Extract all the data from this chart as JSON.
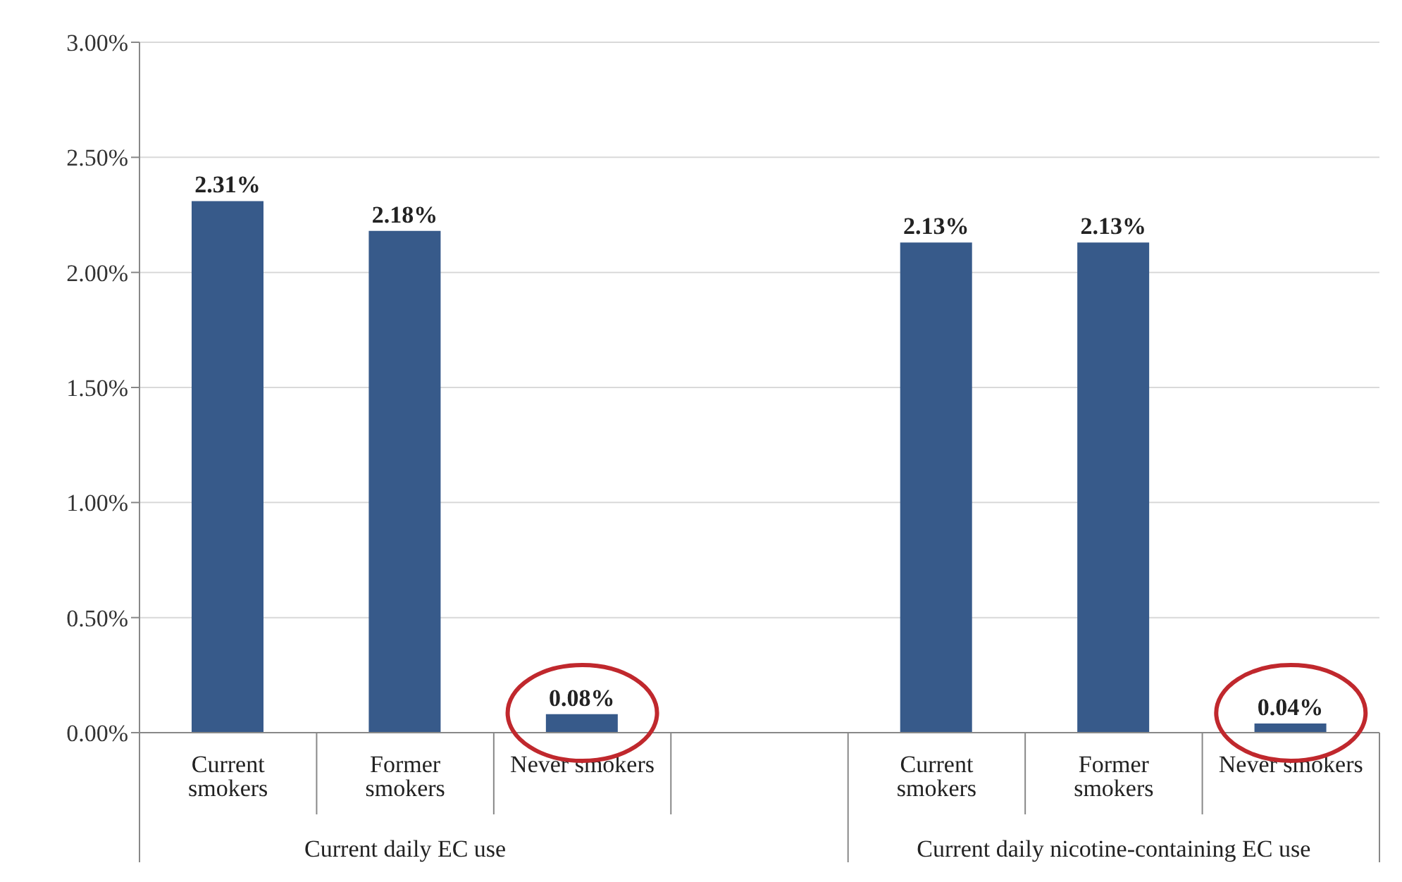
{
  "chart_data": {
    "type": "bar",
    "categories": [
      "Current smokers",
      "Former smokers",
      "Never smokers",
      null,
      "Current smokers",
      "Former smokers",
      "Never smokers"
    ],
    "values": [
      2.31,
      2.18,
      0.08,
      null,
      2.13,
      2.13,
      0.04
    ],
    "value_labels": [
      "2.31%",
      "2.18%",
      "0.08%",
      null,
      "2.13%",
      "2.13%",
      "0.04%"
    ],
    "color": "#375a8a",
    "ylim": [
      0,
      3
    ],
    "yticks": [
      {
        "value": 0,
        "label": "0.00%"
      },
      {
        "value": 0.5,
        "label": "0.50%"
      },
      {
        "value": 1,
        "label": "1.00%"
      },
      {
        "value": 1.5,
        "label": "1.50%"
      },
      {
        "value": 2,
        "label": "2.00%"
      },
      {
        "value": 2.5,
        "label": "2.50%"
      },
      {
        "value": 3,
        "label": "3.00%"
      }
    ],
    "grid": "y",
    "annotations": [
      "Current daily EC use",
      "Current daily nicotine-containing EC use"
    ]
  }
}
